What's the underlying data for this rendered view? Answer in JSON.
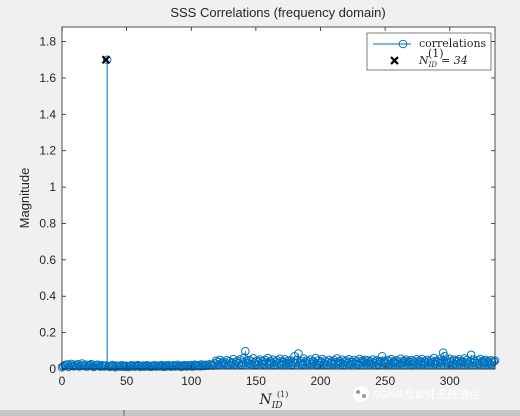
{
  "chart_data": {
    "type": "stem",
    "title": "SSS Correlations (frequency domain)",
    "ylabel": "Magnitude",
    "xlabel": {
      "base": "N",
      "sub": "ID",
      "sup": "(1)"
    },
    "xlim": [
      0,
      335
    ],
    "ylim": [
      0,
      1.88
    ],
    "xticks": [
      0,
      50,
      100,
      150,
      200,
      250,
      300
    ],
    "yticks": [
      0,
      0.2,
      0.4,
      0.6,
      0.8,
      1,
      1.2,
      1.4,
      1.6,
      1.8
    ],
    "xtick_labels": [
      "0",
      "50",
      "100",
      "150",
      "200",
      "250",
      "300"
    ],
    "ytick_labels": [
      "0",
      "0.2",
      "0.4",
      "0.6",
      "0.8",
      "1",
      "1.2",
      "1.4",
      "1.6",
      "1.8"
    ],
    "series": [
      {
        "name": "correlations",
        "marker": "circle",
        "color": "#0072bd",
        "x_start": 0,
        "x_end": 335,
        "values": [
          0.01,
          0.015,
          0.022,
          0.018,
          0.025,
          0.012,
          0.02,
          0.028,
          0.017,
          0.015,
          0.023,
          0.019,
          0.026,
          0.014,
          0.021,
          0.03,
          0.018,
          0.016,
          0.024,
          0.013,
          0.019,
          0.022,
          0.027,
          0.015,
          0.011,
          0.02,
          0.018,
          0.024,
          0.016,
          0.013,
          0.021,
          0.017,
          0.014,
          0.019,
          1.7,
          0.016,
          0.012,
          0.018,
          0.022,
          0.015,
          0.01,
          0.019,
          0.014,
          0.017,
          0.013,
          0.021,
          0.016,
          0.012,
          0.018,
          0.015,
          0.011,
          0.017,
          0.02,
          0.014,
          0.019,
          0.013,
          0.016,
          0.022,
          0.018,
          0.012,
          0.015,
          0.019,
          0.013,
          0.017,
          0.021,
          0.014,
          0.016,
          0.012,
          0.019,
          0.015,
          0.02,
          0.013,
          0.017,
          0.018,
          0.014,
          0.022,
          0.016,
          0.012,
          0.019,
          0.015,
          0.021,
          0.017,
          0.013,
          0.018,
          0.02,
          0.014,
          0.016,
          0.023,
          0.015,
          0.019,
          0.012,
          0.018,
          0.021,
          0.016,
          0.014,
          0.02,
          0.017,
          0.022,
          0.013,
          0.019,
          0.024,
          0.016,
          0.018,
          0.021,
          0.015,
          0.025,
          0.019,
          0.017,
          0.023,
          0.02,
          0.018,
          0.026,
          0.021,
          0.024,
          0.019,
          0.03,
          0.045,
          0.038,
          0.025,
          0.05,
          0.032,
          0.04,
          0.028,
          0.035,
          0.048,
          0.022,
          0.042,
          0.03,
          0.036,
          0.055,
          0.026,
          0.039,
          0.044,
          0.031,
          0.052,
          0.024,
          0.037,
          0.062,
          0.098,
          0.045,
          0.033,
          0.05,
          0.027,
          0.041,
          0.058,
          0.035,
          0.023,
          0.046,
          0.038,
          0.052,
          0.03,
          0.043,
          0.025,
          0.049,
          0.036,
          0.06,
          0.028,
          0.044,
          0.034,
          0.051,
          0.022,
          0.04,
          0.047,
          0.031,
          0.056,
          0.027,
          0.042,
          0.037,
          0.053,
          0.029,
          0.045,
          0.033,
          0.048,
          0.024,
          0.039,
          0.07,
          0.035,
          0.05,
          0.085,
          0.032,
          0.044,
          0.026,
          0.057,
          0.038,
          0.046,
          0.03,
          0.041,
          0.052,
          0.028,
          0.043,
          0.036,
          0.06,
          0.025,
          0.047,
          0.034,
          0.04,
          0.055,
          0.031,
          0.045,
          0.022,
          0.038,
          0.05,
          0.033,
          0.042,
          0.027,
          0.048,
          0.036,
          0.058,
          0.029,
          0.044,
          0.035,
          0.051,
          0.024,
          0.04,
          0.046,
          0.032,
          0.053,
          0.028,
          0.041,
          0.037,
          0.049,
          0.03,
          0.043,
          0.026,
          0.055,
          0.034,
          0.045,
          0.039,
          0.05,
          0.031,
          0.047,
          0.036,
          0.042,
          0.028,
          0.052,
          0.033,
          0.04,
          0.048,
          0.025,
          0.044,
          0.038,
          0.07,
          0.035,
          0.046,
          0.03,
          0.05,
          0.041,
          0.027,
          0.054,
          0.036,
          0.043,
          0.032,
          0.048,
          0.039,
          0.029,
          0.057,
          0.034,
          0.045,
          0.04,
          0.051,
          0.031,
          0.044,
          0.037,
          0.049,
          0.026,
          0.042,
          0.035,
          0.053,
          0.03,
          0.046,
          0.038,
          0.055,
          0.028,
          0.043,
          0.034,
          0.05,
          0.041,
          0.032,
          0.047,
          0.036,
          0.06,
          0.029,
          0.045,
          0.039,
          0.052,
          0.033,
          0.044,
          0.09,
          0.07,
          0.038,
          0.048,
          0.03,
          0.056,
          0.042,
          0.035,
          0.051,
          0.027,
          0.046,
          0.04,
          0.053,
          0.031,
          0.044,
          0.037,
          0.058,
          0.034,
          0.049,
          0.029,
          0.043,
          0.078,
          0.036,
          0.052,
          0.041,
          0.033,
          0.047,
          0.028,
          0.055,
          0.039,
          0.045,
          0.032,
          0.05,
          0.037,
          0.044,
          0.03,
          0.048,
          0.035,
          0.041,
          0.046
        ]
      },
      {
        "name_base": "N",
        "name_sub": "ID",
        "name_sup": "(1)",
        "name_value": "= 34",
        "marker": "x",
        "color": "#000000",
        "x": [
          34
        ],
        "y": [
          1.7
        ]
      }
    ],
    "legend": "top-right",
    "grid": false
  },
  "watermark": "5GNR及软件无线通信"
}
